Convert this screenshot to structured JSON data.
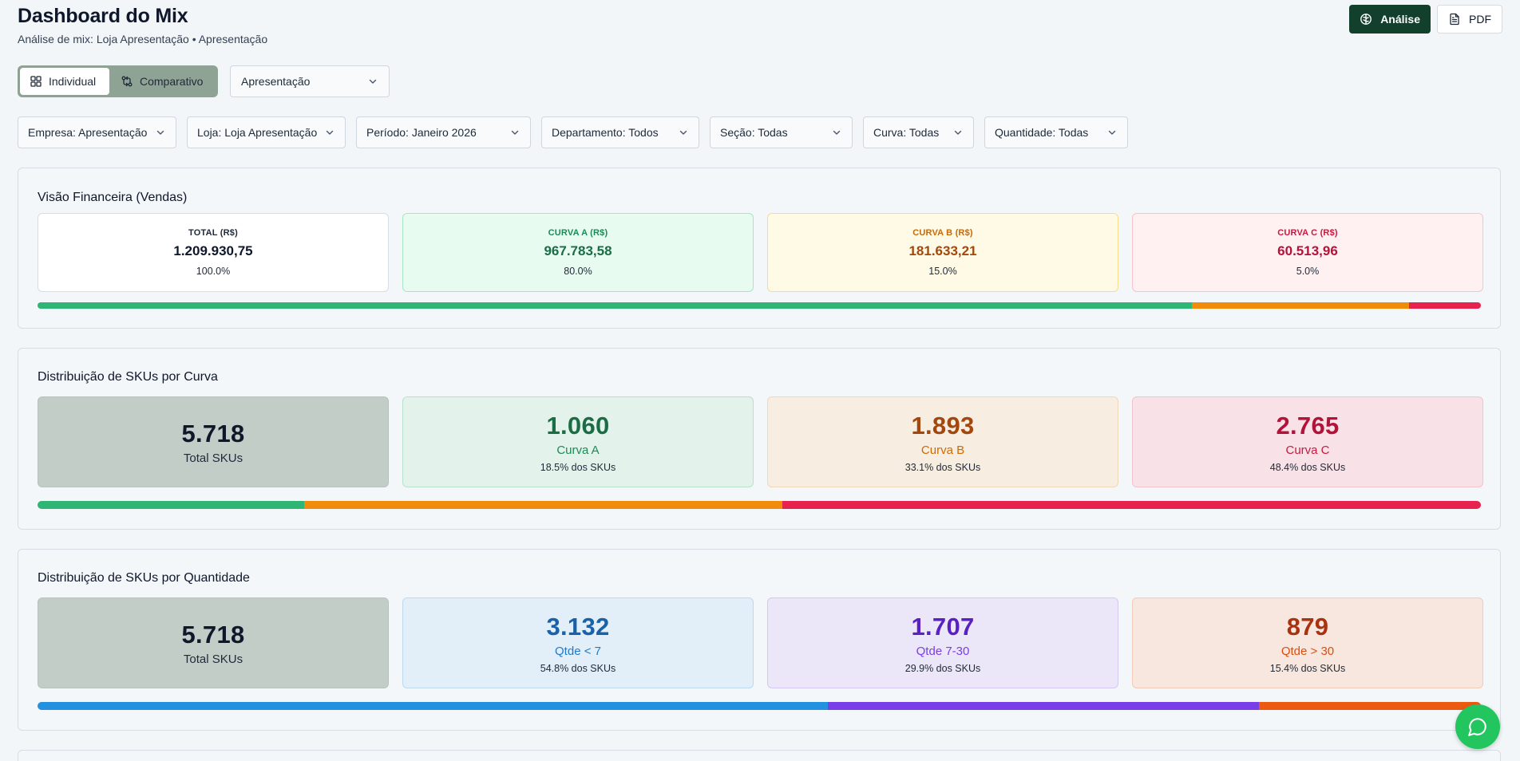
{
  "header": {
    "title": "Dashboard do Mix",
    "subtitle": "Análise de mix: Loja Apresentação • Apresentação"
  },
  "actions": {
    "analise_label": "Análise",
    "pdf_label": "PDF"
  },
  "view_toggle": {
    "individual_label": "Individual",
    "comparativo_label": "Comparativo",
    "active": "Individual"
  },
  "store_select": {
    "value": "Apresentação"
  },
  "filters": [
    {
      "label": "Empresa: Apresentação"
    },
    {
      "label": "Loja: Loja Apresentação"
    },
    {
      "label": "Período: Janeiro 2026"
    },
    {
      "label": "Departamento: Todos"
    },
    {
      "label": "Seção: Todas"
    },
    {
      "label": "Curva: Todas"
    },
    {
      "label": "Quantidade: Todas"
    }
  ],
  "financeira": {
    "title": "Visão Financeira (Vendas)",
    "cards": [
      {
        "label": "TOTAL (R$)",
        "value": "1.209.930,75",
        "pct": "100.0%"
      },
      {
        "label": "CURVA A (R$)",
        "value": "967.783,58",
        "pct": "80.0%"
      },
      {
        "label": "CURVA B (R$)",
        "value": "181.633,21",
        "pct": "15.0%"
      },
      {
        "label": "CURVA C (R$)",
        "value": "60.513,96",
        "pct": "5.0%"
      }
    ],
    "bar_fractions": [
      0.8,
      0.15,
      0.05
    ]
  },
  "skus_curva": {
    "title": "Distribuição de SKUs por Curva",
    "total": {
      "value": "5.718",
      "label": "Total SKUs"
    },
    "cards": [
      {
        "value": "1.060",
        "label": "Curva A",
        "pct": "18.5% dos SKUs"
      },
      {
        "value": "1.893",
        "label": "Curva B",
        "pct": "33.1% dos SKUs"
      },
      {
        "value": "2.765",
        "label": "Curva C",
        "pct": "48.4% dos SKUs"
      }
    ],
    "bar_fractions": [
      0.185,
      0.331,
      0.484
    ]
  },
  "skus_quantidade": {
    "title": "Distribuição de SKUs por Quantidade",
    "total": {
      "value": "5.718",
      "label": "Total SKUs"
    },
    "cards": [
      {
        "value": "3.132",
        "label": "Qtde < 7",
        "pct": "54.8% dos SKUs"
      },
      {
        "value": "1.707",
        "label": "Qtde 7-30",
        "pct": "29.9% dos SKUs"
      },
      {
        "value": "879",
        "label": "Qtde > 30",
        "pct": "15.4% dos SKUs"
      }
    ],
    "bar_fractions": [
      0.548,
      0.299,
      0.154
    ]
  },
  "colors": {
    "curva_a": "#2fb574",
    "curva_b": "#f08c0a",
    "curva_c": "#e8224f",
    "qtde_low": "#2491e0",
    "qtde_mid": "#7a3ee8",
    "qtde_high": "#ec5a12",
    "brand_dark": "#12402c"
  },
  "icons": {
    "analise": "brain-icon",
    "pdf": "file-text-icon",
    "individual": "grid-icon",
    "comparativo": "git-compare-icon",
    "chat": "chat-bubble-icon"
  }
}
